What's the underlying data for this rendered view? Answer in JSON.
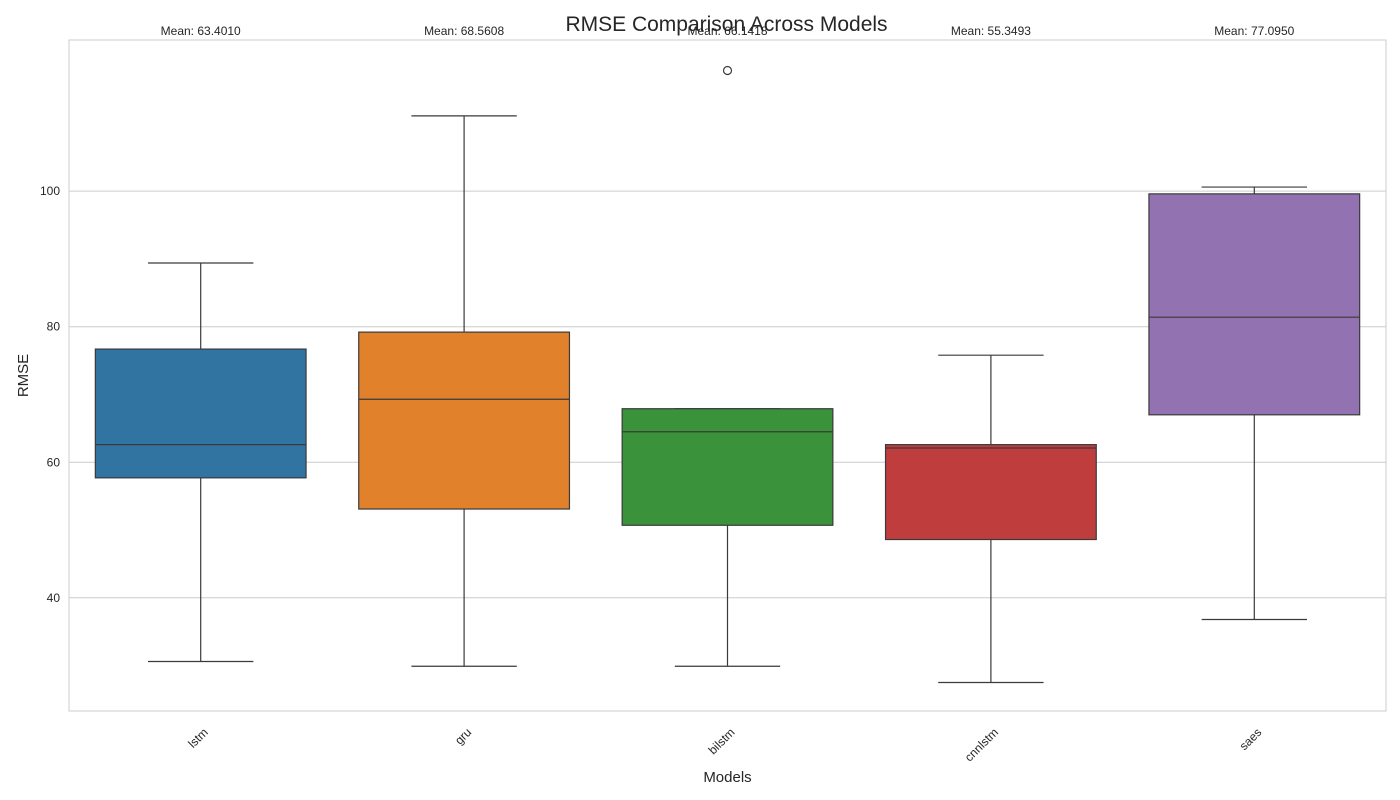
{
  "chart_data": {
    "type": "box",
    "title": "RMSE Comparison Across Models",
    "xlabel": "Models",
    "ylabel": "RMSE",
    "ylim": [
      23.3,
      122.3
    ],
    "yticks": [
      40,
      60,
      80,
      100
    ],
    "grid": true,
    "mean_prefix": "Mean: ",
    "categories": [
      "lstm",
      "gru",
      "bilstm",
      "cnnlstm",
      "saes"
    ],
    "series": [
      {
        "category": "lstm",
        "color": "#3274a1",
        "whisker_low": 30.6,
        "q1": 57.7,
        "median": 62.6,
        "q3": 76.7,
        "whisker_high": 89.4,
        "outliers": [],
        "mean": "63.4010"
      },
      {
        "category": "gru",
        "color": "#e1812c",
        "whisker_low": 29.9,
        "q1": 53.1,
        "median": 69.3,
        "q3": 79.2,
        "whisker_high": 111.1,
        "outliers": [],
        "mean": "68.5608"
      },
      {
        "category": "bilstm",
        "color": "#3a923a",
        "whisker_low": 29.9,
        "q1": 50.7,
        "median": 64.5,
        "q3": 67.9,
        "whisker_high": 67.9,
        "outliers": [
          117.8
        ],
        "mean": "66.1418"
      },
      {
        "category": "cnnlstm",
        "color": "#c03d3e",
        "whisker_low": 27.5,
        "q1": 48.6,
        "median": 62.1,
        "q3": 62.6,
        "whisker_high": 75.8,
        "outliers": [],
        "mean": "55.3493"
      },
      {
        "category": "saes",
        "color": "#9372b2",
        "whisker_low": 36.8,
        "q1": 67.0,
        "median": 81.4,
        "q3": 99.6,
        "whisker_high": 100.6,
        "outliers": [],
        "mean": "77.0950"
      }
    ]
  }
}
